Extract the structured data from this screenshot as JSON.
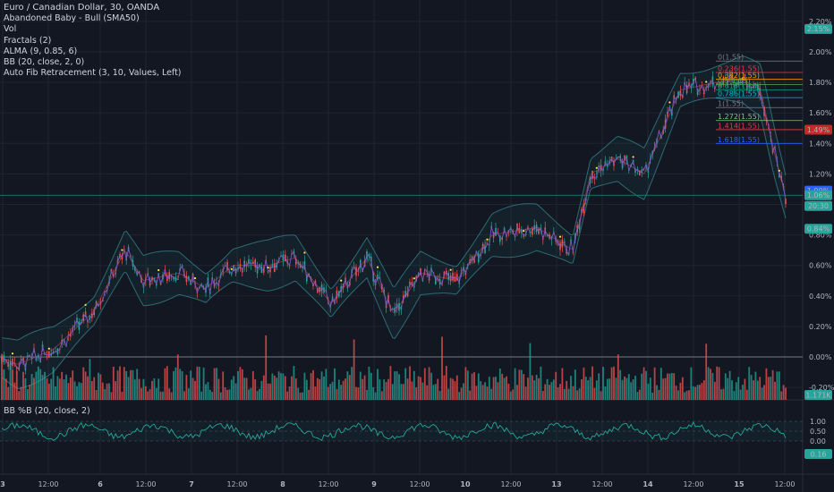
{
  "legend": {
    "symbol": "Euro / Canadian Dollar, 30, OANDA",
    "indicators": [
      "Abandoned Baby - Bull (SMA50)",
      "Vol",
      "Fractals (2)",
      "ALMA (9, 0.85, 6)",
      "BB (20, close, 2, 0)",
      "Auto Fib Retracement (3, 10, Values, Left)"
    ]
  },
  "lower_pane": {
    "label": "BB %B (20, close, 2)"
  },
  "colors": {
    "background": "#131722",
    "up": "#26a69a",
    "down": "#ef5350",
    "bb_band": "#2e6b73",
    "alma": "#7e57c2",
    "grid": "#1f2433",
    "fractal": "#ffeb3b"
  },
  "price_axis": {
    "ticks": [
      "2.20%",
      "2.00%",
      "1.80%",
      "1.60%",
      "1.40%",
      "1.20%",
      "0.80%",
      "0.60%",
      "0.40%",
      "0.20%",
      "0.00%",
      "-0.20%"
    ],
    "badges": [
      {
        "text": "2.15%",
        "color": "#26a69a",
        "value": 2.15
      },
      {
        "text": "1.49%",
        "color": "#c62828",
        "value": 1.49
      },
      {
        "text": "1.09%",
        "color": "#2962ff",
        "value": 1.09
      },
      {
        "text": "1.06%",
        "color": "#26a69a",
        "value": 1.06
      },
      {
        "text": "20:30",
        "color": "#26a69a",
        "value": 0.99
      },
      {
        "text": "0.84%",
        "color": "#26a69a",
        "value": 0.84
      }
    ],
    "volume_badge": {
      "text": "1.171K",
      "color": "#26a69a"
    }
  },
  "lower_axis": {
    "ticks": [
      "1.00",
      "0.50",
      "0.00"
    ],
    "badge": {
      "text": "0.16",
      "color": "#26a69a"
    }
  },
  "time_axis": [
    "3",
    "12:00",
    "6",
    "12:00",
    "7",
    "12:00",
    "8",
    "12:00",
    "9",
    "12:00",
    "10",
    "12:00",
    "13",
    "12:00",
    "14",
    "12:00",
    "15",
    "12:00"
  ],
  "fib_levels": [
    {
      "label": "0(1.55)",
      "value": 1.94,
      "color": "#787b86"
    },
    {
      "label": "0.236(1.55)",
      "value": 1.865,
      "color": "#f23645"
    },
    {
      "label": "0.382(1.55)",
      "value": 1.82,
      "color": "#ff9800"
    },
    {
      "label": "0.5(1.55)",
      "value": 1.785,
      "color": "#4caf50"
    },
    {
      "label": "0.618(1.55)",
      "value": 1.75,
      "color": "#089981"
    },
    {
      "label": "0.786(1.55)",
      "value": 1.7,
      "color": "#00bcd4"
    },
    {
      "label": "1(1.55)",
      "value": 1.635,
      "color": "#787b86"
    },
    {
      "label": "1.272(1.55)",
      "value": 1.55,
      "color": "#81c784"
    },
    {
      "label": "1.414(1.55)",
      "value": 1.49,
      "color": "#f23645"
    },
    {
      "label": "1.618(1.55)",
      "value": 1.4,
      "color": "#2962ff"
    }
  ]
}
